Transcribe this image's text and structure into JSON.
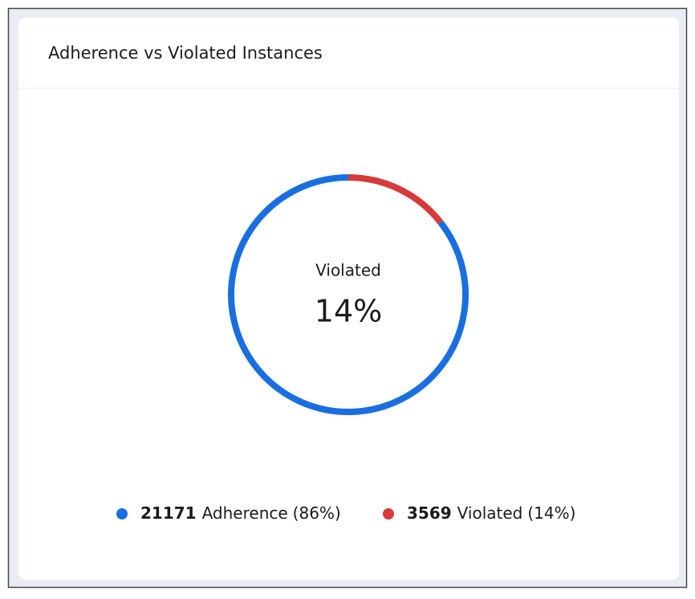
{
  "chart_data": {
    "type": "donut",
    "title": "Adherence vs Violated Instances",
    "categories": [
      "Adherence",
      "Violated"
    ],
    "values": [
      21171,
      3569
    ],
    "percent_labels": [
      "(86%)",
      "(14%)"
    ],
    "colors": [
      "#1a6fe0",
      "#d63a3a"
    ],
    "center_value": "14%"
  }
}
